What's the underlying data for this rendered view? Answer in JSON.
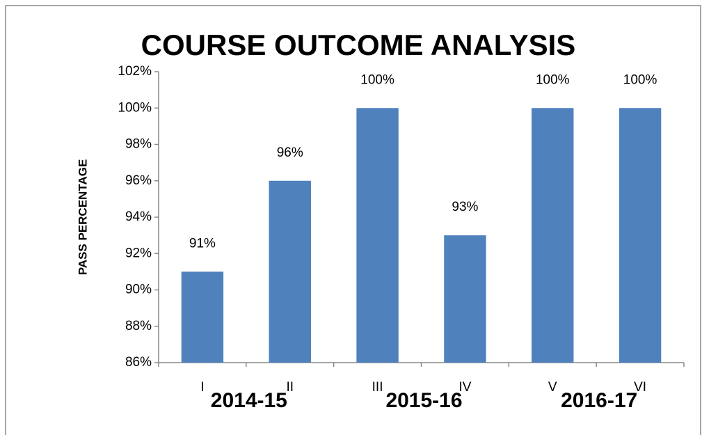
{
  "chart_data": {
    "type": "bar",
    "title": "COURSE OUTCOME ANALYSIS",
    "y_label": "PASS PERCENTAGE",
    "categories": [
      "I",
      "II",
      "III",
      "IV",
      "V",
      "VI"
    ],
    "values": [
      91,
      96,
      100,
      93,
      100,
      100
    ],
    "value_labels": [
      "91%",
      "96%",
      "100%",
      "93%",
      "100%",
      "100%"
    ],
    "group_labels": [
      "2014-15",
      "2015-16",
      "2016-17"
    ],
    "color": "#4f81bd",
    "ylim": [
      86,
      102
    ],
    "yticks": [
      {
        "value": 86,
        "label": "86%"
      },
      {
        "value": 88,
        "label": "88%"
      },
      {
        "value": 90,
        "label": "90%"
      },
      {
        "value": 92,
        "label": "92%"
      },
      {
        "value": 94,
        "label": "94%"
      },
      {
        "value": 96,
        "label": "96%"
      },
      {
        "value": 98,
        "label": "98%"
      },
      {
        "value": 100,
        "label": "100%"
      },
      {
        "value": 102,
        "label": "102%"
      }
    ],
    "grid": false
  }
}
